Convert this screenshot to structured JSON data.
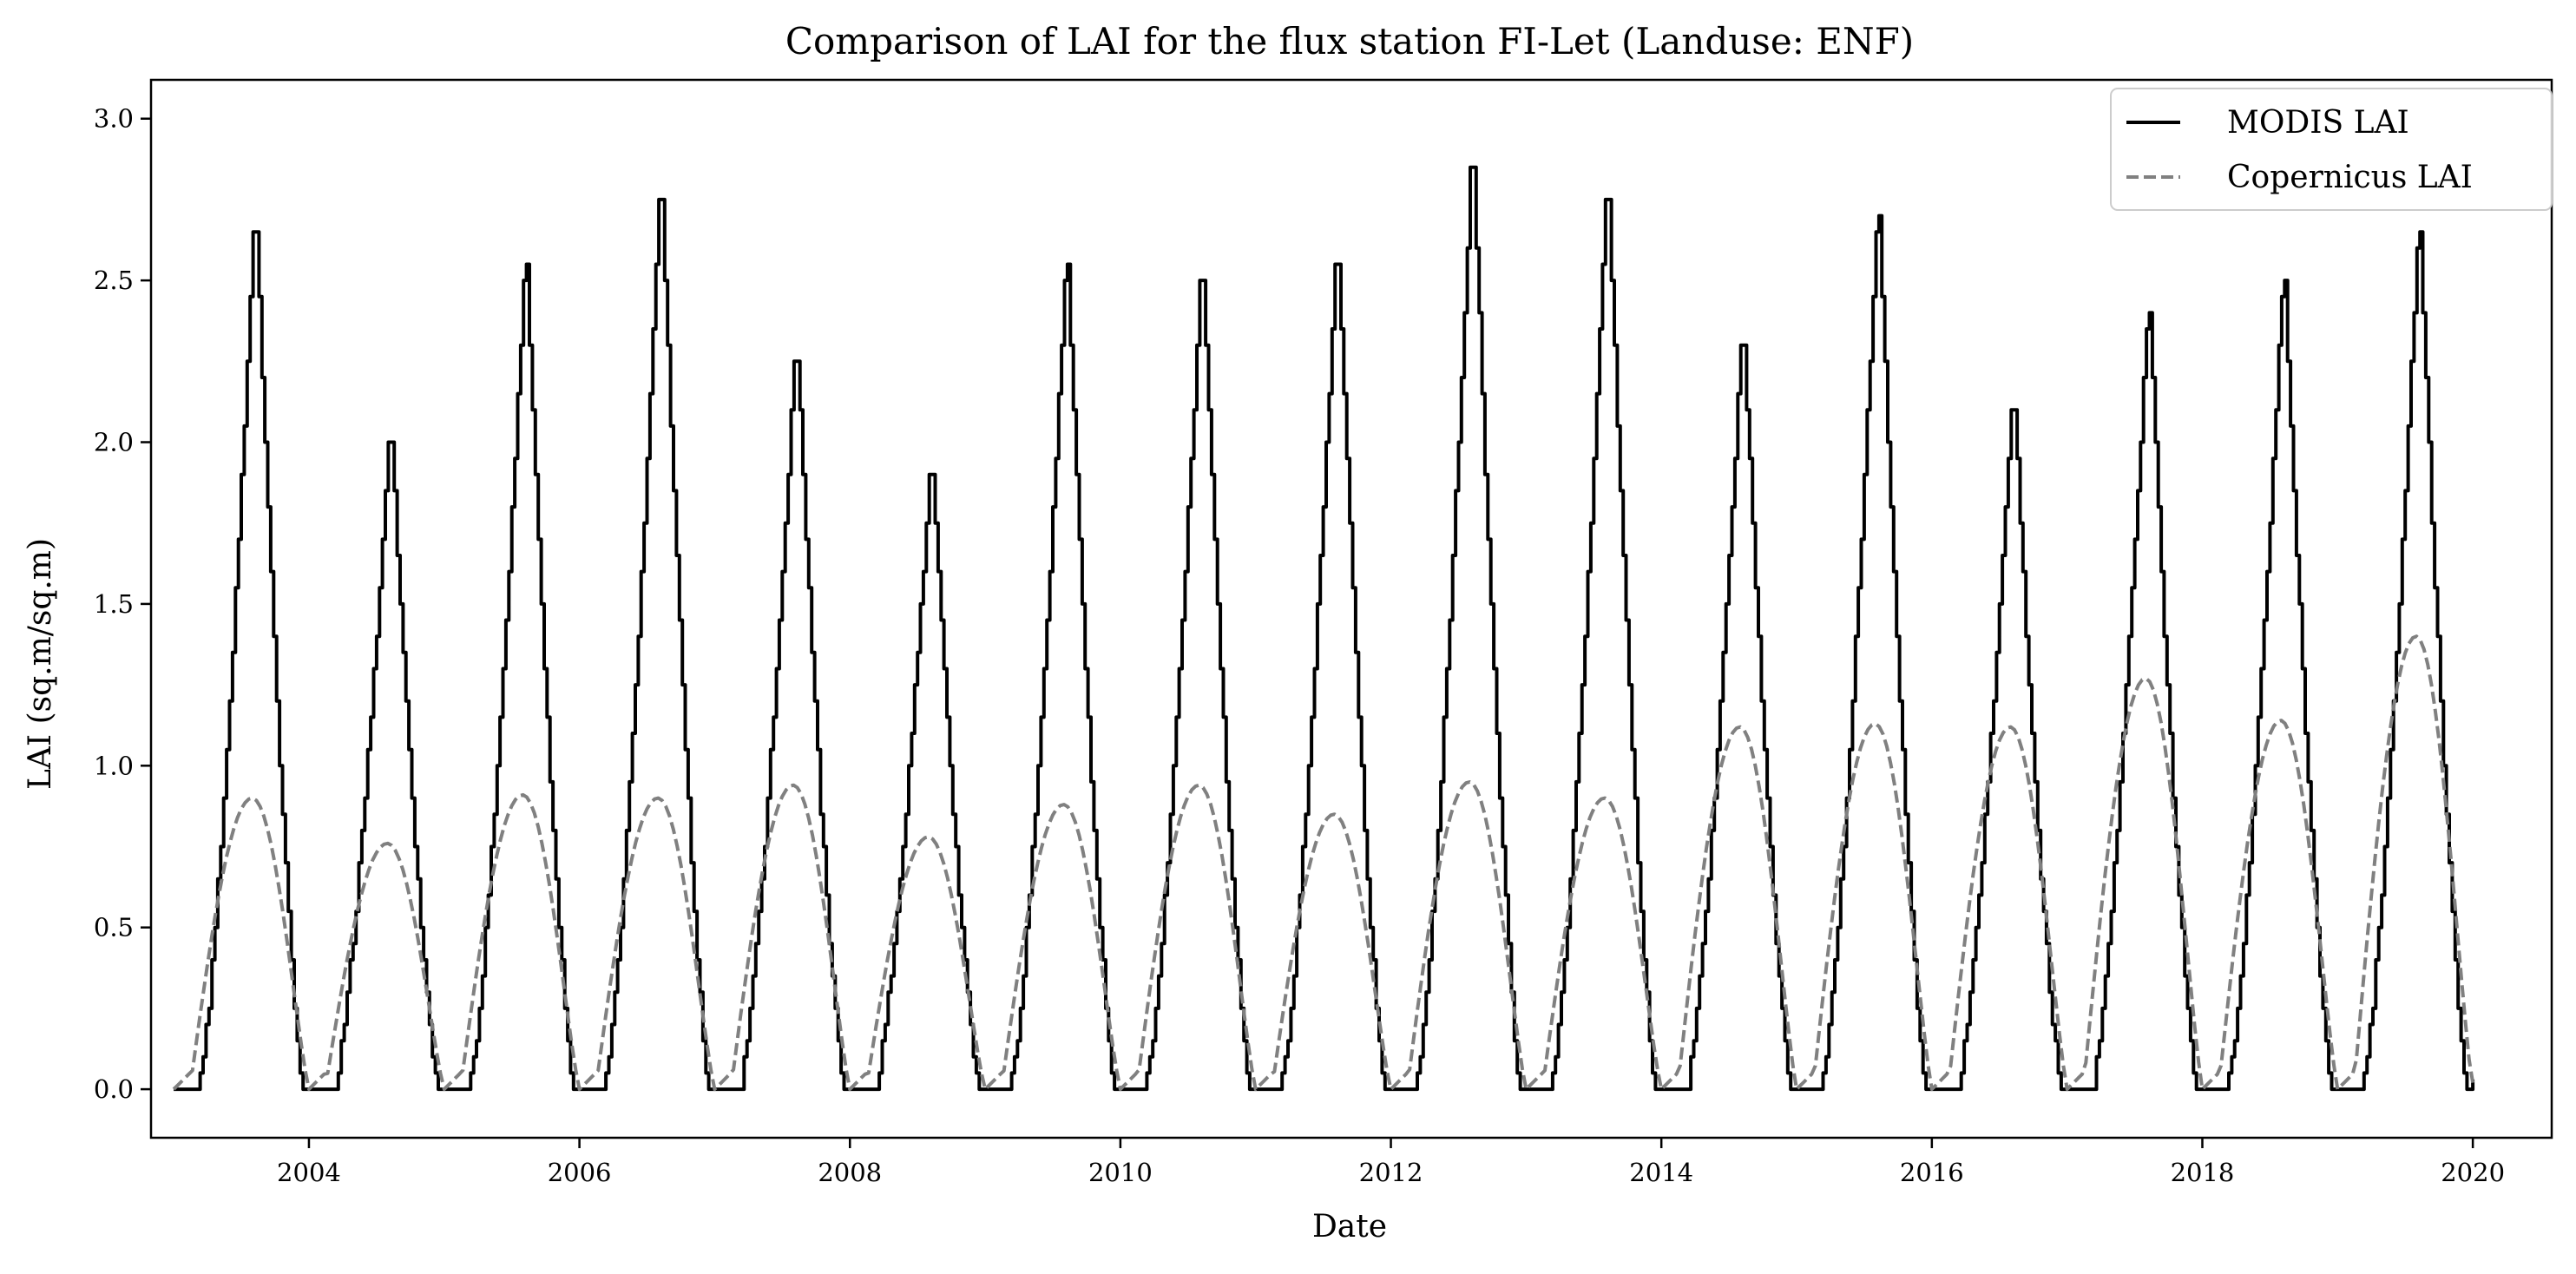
{
  "chart_data": {
    "type": "line",
    "title": "Comparison of LAI for the flux station FI-Let (Landuse: ENF)",
    "xlabel": "Date",
    "ylabel": "LAI (sq.m/sq.m)",
    "xlim": [
      "2002-11-01",
      "2020-08-01"
    ],
    "ylim": [
      -0.15,
      3.12
    ],
    "x_ticks": [
      "2004",
      "2006",
      "2008",
      "2010",
      "2012",
      "2014",
      "2016",
      "2018",
      "2020"
    ],
    "y_ticks": [
      "0.0",
      "0.5",
      "1.0",
      "1.5",
      "2.0",
      "2.5",
      "3.0"
    ],
    "grid": false,
    "legend": "top-right",
    "colors": {
      "modis": "#000000",
      "copernicus": "#808080"
    },
    "series": [
      {
        "name": "MODIS LAI",
        "style": "solid",
        "color": "#000000",
        "annual_peaks": [
          {
            "year": 2003,
            "peak": 2.75
          },
          {
            "year": 2004,
            "peak": 2.07
          },
          {
            "year": 2005,
            "peak": 2.62
          },
          {
            "year": 2006,
            "peak": 2.85
          },
          {
            "year": 2007,
            "peak": 2.35
          },
          {
            "year": 2008,
            "peak": 1.98
          },
          {
            "year": 2009,
            "peak": 2.62
          },
          {
            "year": 2010,
            "peak": 2.6
          },
          {
            "year": 2011,
            "peak": 2.66
          },
          {
            "year": 2012,
            "peak": 2.96
          },
          {
            "year": 2013,
            "peak": 2.85
          },
          {
            "year": 2014,
            "peak": 2.4
          },
          {
            "year": 2015,
            "peak": 2.78
          },
          {
            "year": 2016,
            "peak": 2.18
          },
          {
            "year": 2017,
            "peak": 2.47
          },
          {
            "year": 2018,
            "peak": 2.57
          },
          {
            "year": 2019,
            "peak": 2.73
          }
        ],
        "baseline": 0.0
      },
      {
        "name": "Copernicus LAI",
        "style": "dashed",
        "color": "#808080",
        "annual_peaks": [
          {
            "year": 2003,
            "peak": 0.9
          },
          {
            "year": 2004,
            "peak": 0.76
          },
          {
            "year": 2005,
            "peak": 0.91
          },
          {
            "year": 2006,
            "peak": 0.9
          },
          {
            "year": 2007,
            "peak": 0.94
          },
          {
            "year": 2008,
            "peak": 0.78
          },
          {
            "year": 2009,
            "peak": 0.88
          },
          {
            "year": 2010,
            "peak": 0.94
          },
          {
            "year": 2011,
            "peak": 0.85
          },
          {
            "year": 2012,
            "peak": 0.95
          },
          {
            "year": 2013,
            "peak": 0.9
          },
          {
            "year": 2014,
            "peak": 1.12
          },
          {
            "year": 2015,
            "peak": 1.13
          },
          {
            "year": 2016,
            "peak": 1.12
          },
          {
            "year": 2017,
            "peak": 1.27
          },
          {
            "year": 2018,
            "peak": 1.14
          },
          {
            "year": 2019,
            "peak": 1.4
          }
        ],
        "baseline": 0.0
      }
    ]
  }
}
